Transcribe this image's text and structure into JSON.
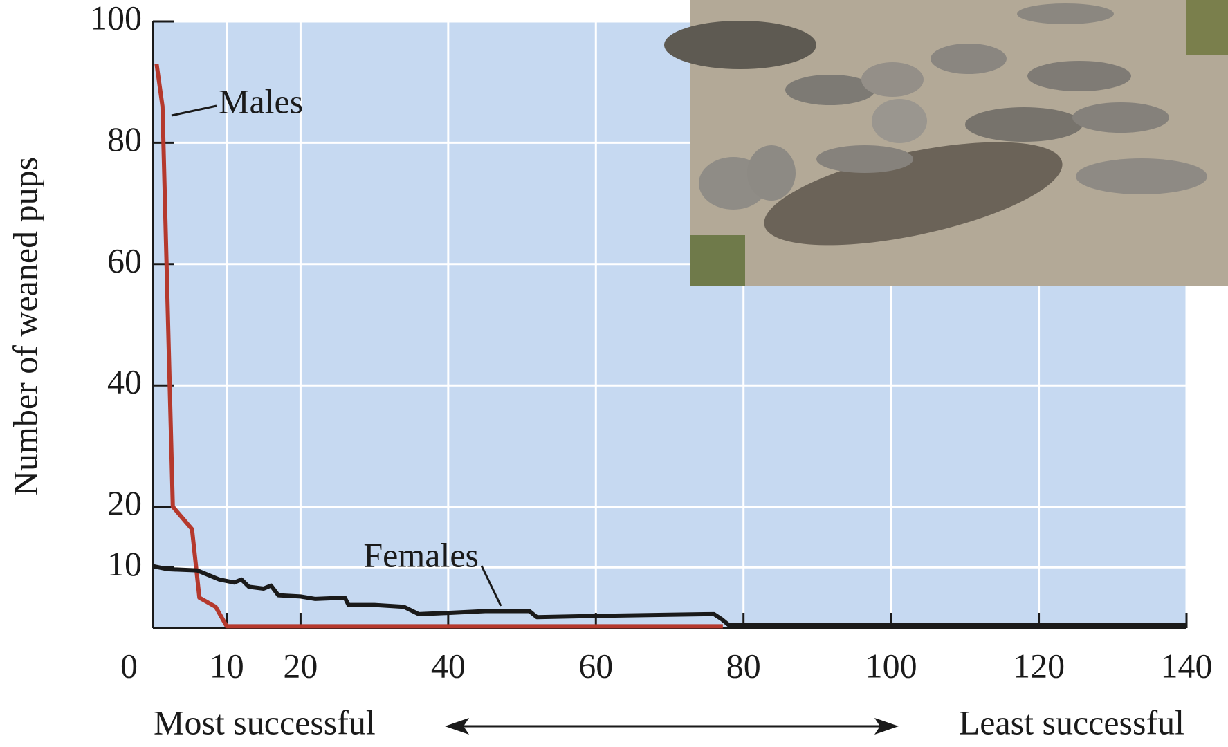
{
  "chart_data": {
    "type": "line",
    "ylabel": "Number of weaned pups",
    "xlim": [
      0,
      140
    ],
    "ylim": [
      0,
      100
    ],
    "xticks": [
      0,
      10,
      20,
      40,
      60,
      80,
      100,
      120,
      140
    ],
    "yticks": [
      10,
      20,
      40,
      60,
      80,
      100
    ],
    "grid": true,
    "background": "#c6d9f1",
    "series": [
      {
        "name": "Males",
        "color": "#b5392d",
        "x": [
          0.5,
          1.3,
          2.7,
          5.3,
          6.3,
          8.5,
          10,
          77.2
        ],
        "values": [
          93,
          86,
          20,
          16.3,
          5,
          3.5,
          0.3,
          0.3
        ]
      },
      {
        "name": "Females",
        "color": "#1a1a1a",
        "x": [
          0,
          2,
          6,
          9,
          11,
          12,
          13,
          15,
          16,
          17,
          20,
          22,
          26,
          26.5,
          30,
          34,
          36,
          40,
          45,
          51,
          52,
          60,
          70,
          76,
          77,
          78,
          140
        ],
        "values": [
          10.2,
          9.7,
          9.5,
          8,
          7.5,
          8,
          6.8,
          6.5,
          7,
          5.4,
          5.2,
          4.8,
          5,
          3.8,
          3.8,
          3.5,
          2.3,
          2.5,
          2.8,
          2.8,
          1.8,
          2,
          2.2,
          2.3,
          1.5,
          0.5,
          0.5
        ]
      }
    ],
    "annotations": [
      "Most successful",
      "Least successful"
    ]
  }
}
